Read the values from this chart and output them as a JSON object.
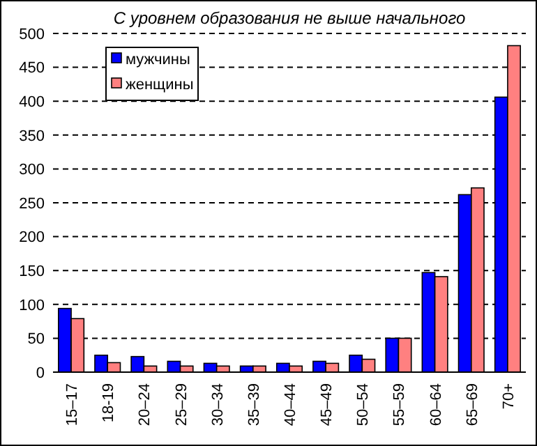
{
  "chart_data": {
    "type": "bar",
    "title": "С уровнем образования не выше начального",
    "categories": [
      "15–17",
      "18-19",
      "20–24",
      "25–29",
      "30–34",
      "35–39",
      "40–44",
      "45–49",
      "50–54",
      "55–59",
      "60–64",
      "65–69",
      "70+"
    ],
    "series": [
      {
        "name": "мужчины",
        "color": "#0000ff",
        "values": [
          94,
          25,
          23,
          16,
          13,
          9,
          13,
          16,
          25,
          50,
          147,
          262,
          406
        ]
      },
      {
        "name": "женщины",
        "color": "#ff8080",
        "values": [
          79,
          14,
          9,
          9,
          9,
          9,
          9,
          13,
          19,
          50,
          141,
          272,
          482
        ]
      }
    ],
    "ylim": [
      0,
      500
    ],
    "yticks": [
      0,
      50,
      100,
      150,
      200,
      250,
      300,
      350,
      400,
      450,
      500
    ],
    "grid": "y",
    "legend": "top left"
  }
}
